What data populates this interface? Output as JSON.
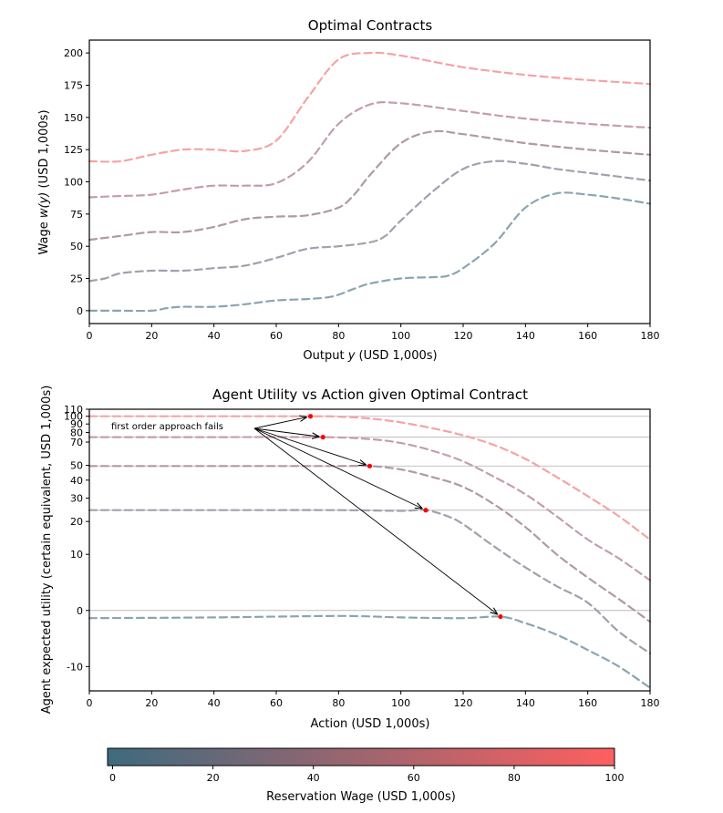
{
  "chart_data": [
    {
      "type": "line",
      "title": "Optimal Contracts",
      "xlabel_pre": "Output ",
      "xlabel_var": "y",
      "xlabel_post": " (USD 1,000s)",
      "ylabel_pre": "Wage ",
      "ylabel_var": "w(y)",
      "ylabel_post": " (USD 1,000s)",
      "xlim": [
        0,
        180
      ],
      "ylim": [
        -10,
        210
      ],
      "xticks": [
        0,
        20,
        40,
        60,
        80,
        100,
        120,
        140,
        160,
        180
      ],
      "yticks": [
        0,
        25,
        50,
        75,
        100,
        125,
        150,
        175,
        200
      ],
      "series": [
        {
          "name": "reservation 0",
          "color": "#8aa5b1",
          "x": [
            0,
            10,
            20,
            25,
            30,
            40,
            50,
            60,
            70,
            78,
            85,
            90,
            100,
            110,
            115,
            120,
            130,
            140,
            150,
            160,
            170,
            180
          ],
          "y": [
            0,
            0,
            0,
            2,
            3,
            3,
            5,
            8,
            9,
            11,
            17,
            21,
            25,
            26,
            27,
            33,
            52,
            80,
            91,
            90,
            87,
            83
          ]
        },
        {
          "name": "reservation 25",
          "color": "#a0a1ac",
          "x": [
            0,
            5,
            10,
            20,
            30,
            40,
            50,
            60,
            70,
            80,
            90,
            95,
            100,
            110,
            120,
            130,
            140,
            150,
            160,
            170,
            180
          ],
          "y": [
            23,
            25,
            29,
            31,
            31,
            33,
            35,
            41,
            48,
            50,
            53,
            58,
            70,
            92,
            110,
            116,
            114,
            110,
            107,
            104,
            101
          ]
        },
        {
          "name": "reservation 50",
          "color": "#b099a6",
          "x": [
            0,
            10,
            20,
            30,
            40,
            50,
            60,
            70,
            80,
            85,
            90,
            100,
            110,
            120,
            140,
            160,
            180
          ],
          "y": [
            55,
            58,
            61,
            61,
            65,
            71,
            73,
            74,
            80,
            90,
            105,
            130,
            139,
            137,
            130,
            125,
            121
          ]
        },
        {
          "name": "reservation 75",
          "color": "#c49fa6",
          "x": [
            0,
            10,
            20,
            30,
            40,
            50,
            60,
            70,
            80,
            90,
            100,
            120,
            140,
            160,
            180
          ],
          "y": [
            88,
            89,
            90,
            94,
            97,
            97,
            99,
            115,
            145,
            160,
            161,
            155,
            149,
            145,
            142
          ]
        },
        {
          "name": "reservation 100",
          "color": "#f6a3a3",
          "x": [
            0,
            10,
            20,
            30,
            40,
            50,
            60,
            70,
            80,
            90,
            100,
            120,
            140,
            160,
            180
          ],
          "y": [
            116,
            116,
            121,
            125,
            125,
            124,
            132,
            165,
            195,
            200,
            198,
            189,
            183,
            179,
            176
          ]
        }
      ]
    },
    {
      "type": "line",
      "title": "Agent Utility vs Action given Optimal Contract",
      "xlabel": "Action (USD 1,000s)",
      "ylabel": "Agent expected utility (certain equivalent, USD 1,000s)",
      "xlim": [
        0,
        180
      ],
      "yscale": "symlog",
      "ylim": [
        -17,
        110
      ],
      "xticks": [
        0,
        20,
        40,
        60,
        80,
        100,
        120,
        140,
        160,
        180
      ],
      "yticks": [
        110,
        100,
        90,
        80,
        70,
        50,
        40,
        30,
        20,
        10,
        0,
        -10
      ],
      "ytick_labels": [
        "110",
        "100",
        "90",
        "80",
        "70",
        "50",
        "40",
        "30",
        "20",
        "10",
        "0",
        "-10"
      ],
      "reference_lines": [
        0,
        24.5,
        49.5,
        75,
        100
      ],
      "annotation": "first order approach fails",
      "markers": [
        [
          71,
          100
        ],
        [
          75,
          75
        ],
        [
          90,
          49.5
        ],
        [
          108,
          24.5
        ],
        [
          132,
          -0.8
        ]
      ],
      "series": [
        {
          "name": "reservation 0",
          "color": "#8aa5b1",
          "x": [
            0,
            40,
            80,
            100,
            120,
            132,
            140,
            150,
            160,
            170,
            180
          ],
          "y": [
            -1,
            -0.9,
            -0.7,
            -0.9,
            -1.0,
            -0.8,
            -1.7,
            -3.5,
            -6.3,
            -10,
            -16
          ]
        },
        {
          "name": "reservation 25",
          "color": "#a0a1ac",
          "x": [
            0,
            40,
            80,
            100,
            108,
            115,
            120,
            130,
            140,
            150,
            160,
            170,
            180
          ],
          "y": [
            24.5,
            24.5,
            24.5,
            24.2,
            24.5,
            22,
            19,
            12,
            7,
            3.5,
            1,
            -3,
            -7
          ]
        },
        {
          "name": "reservation 50",
          "color": "#b099a6",
          "x": [
            0,
            40,
            80,
            90,
            100,
            110,
            120,
            130,
            140,
            150,
            160,
            170,
            180
          ],
          "y": [
            49.5,
            49.5,
            49.5,
            49.5,
            47,
            42,
            36,
            27,
            18,
            10,
            5,
            1.5,
            -1.5
          ]
        },
        {
          "name": "reservation 75",
          "color": "#c49fa6",
          "x": [
            0,
            40,
            75,
            90,
            100,
            110,
            120,
            130,
            140,
            150,
            160,
            170,
            180
          ],
          "y": [
            75,
            75,
            75,
            73,
            69,
            62,
            53,
            42,
            32,
            22,
            14,
            9,
            4.5
          ]
        },
        {
          "name": "reservation 100",
          "color": "#f6a3a3",
          "x": [
            0,
            40,
            71,
            80,
            90,
            100,
            110,
            120,
            130,
            140,
            150,
            160,
            170,
            180
          ],
          "y": [
            100,
            100,
            100,
            99.5,
            97,
            92,
            85,
            77,
            67,
            55,
            42,
            31,
            22,
            14
          ]
        }
      ]
    },
    {
      "type": "colorbar",
      "xlabel": "Reservation Wage (USD 1,000s)",
      "xlim": [
        -1,
        100
      ],
      "xticks": [
        0,
        20,
        40,
        60,
        80,
        100
      ],
      "color_low": "#3d6b7e",
      "color_high": "#ff5f5f"
    }
  ]
}
